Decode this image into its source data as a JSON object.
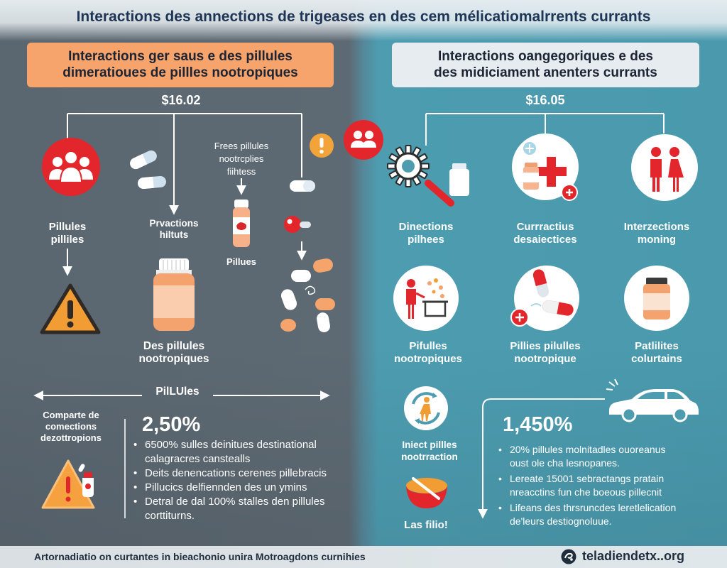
{
  "title": "Interactions des annections de trigeases en des cem mélicatiomalrrents currants",
  "colors": {
    "left_panel": "#5b6770",
    "right_panel": "#4e9cb0",
    "accent_red": "#e3262b",
    "accent_orange": "#f5a46c",
    "title_text": "#1e3556"
  },
  "left": {
    "header": {
      "line1": "Interactions ger saus e des pillules",
      "line2": "dimeratioues de pillles nootropiques"
    },
    "price": "$16.02",
    "branch_a": {
      "icon": "people-group-icon",
      "label": [
        "Pillules",
        "pilliles"
      ],
      "result_icon": "warning-triangle-icon"
    },
    "branch_b": {
      "icon": "capsules-icon",
      "label": [
        "Prvactions",
        "hiltuts"
      ],
      "result_icon": "pill-bottle-icon",
      "result_label": [
        "Des pillules",
        "nootropiques"
      ]
    },
    "branch_c": {
      "caption": [
        "Frees pillules",
        "nootrcplies",
        "fiihtess"
      ],
      "icon": "vial-icon",
      "label": "Pillues"
    },
    "branch_d": {
      "icons": [
        "capsule-white-icon",
        "red-ball-pill-icon",
        "pill-cluster-icon"
      ]
    },
    "alert_icons": [
      "warning-circle-icon",
      "red-people-circle-icon"
    ],
    "divider_label": "PilLUles",
    "compare_label": [
      "Comparte de",
      "comections",
      "dezottropions"
    ],
    "compare_icon": "warning-pills-icon",
    "stat": "2,50%",
    "bullets": [
      [
        "6500% sulles deinitues destinational",
        "calagracres canstealls"
      ],
      [
        "Deits denencations cerenes pillebracis"
      ],
      [
        "Pillucics delfiennden des un ymins"
      ],
      [
        "Detral de dal 100% stalles den pillules",
        "corttiturns."
      ]
    ]
  },
  "right": {
    "header": {
      "line1": "Interactions oangegoriques e des",
      "line2": "des midiciament anenters currants"
    },
    "price": "$16.05",
    "top_row": [
      {
        "icon": "sun-thermometer-icon",
        "label": [
          "Dinections",
          "pilhees"
        ]
      },
      {
        "icon": "cross-circle-icon",
        "label": [
          "Currractius",
          "desaiectices"
        ]
      },
      {
        "icon": "couple-icon",
        "label": [
          "Interzections",
          "moning"
        ]
      }
    ],
    "second_row": [
      {
        "icon": "person-sink-icon",
        "label": [
          "Pifulles",
          "nootropiques"
        ]
      },
      {
        "icon": "capsules-plus-icon",
        "label": [
          "Pillies pilulles",
          "nootropique"
        ]
      },
      {
        "icon": "bottle-circle-icon",
        "label": [
          "Patlilites",
          "colurtains"
        ]
      }
    ],
    "side": {
      "icon": "cycle-person-icon",
      "label": [
        "Iniect pillles",
        "nootrraction"
      ],
      "bowl_icon": "bowl-icon",
      "bowl_label": "Las filio!"
    },
    "car_icon": "car-icon",
    "stat": "1,450%",
    "bullets": [
      [
        "20% pillules molnitadles ouoreanus",
        "oust ole cha lesnopanes."
      ],
      [
        "Lereate 15001 sebractangs pratain",
        "nreacctins fun che boeous pillecnit"
      ],
      [
        "Lifeans des thrsruncdes leretlelication",
        "de'leurs destiognoluue."
      ]
    ]
  },
  "footer": {
    "left": "Artornadiatio on curtantes in bieachonio unira Motroagdons curnihies",
    "icon": "site-logo-icon",
    "right": "teladiendetx..org"
  }
}
